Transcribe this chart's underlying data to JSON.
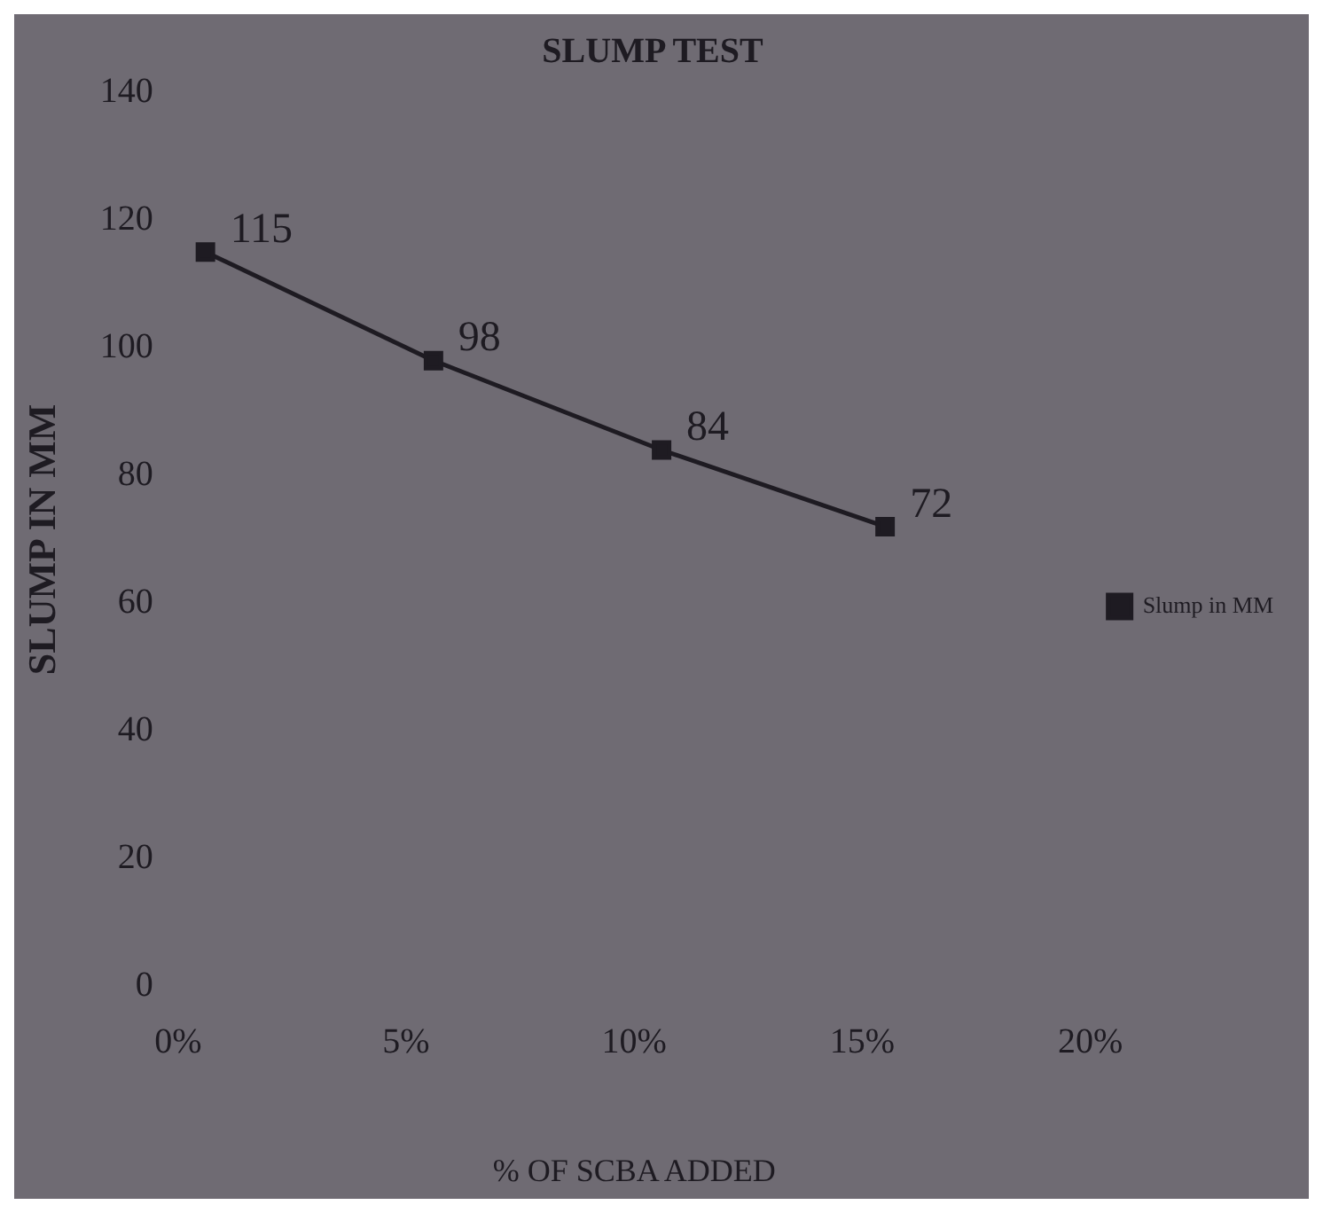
{
  "chart_data": {
    "type": "line",
    "title": "SLUMP TEST",
    "xlabel": "% OF SCBA ADDED",
    "ylabel": "SLUMP IN MM",
    "x": [
      0.6,
      5.6,
      10.6,
      15.5
    ],
    "series": [
      {
        "name": "Slump in MM",
        "color": "#1e1b22",
        "values": [
          115,
          98,
          84,
          72
        ]
      }
    ],
    "xlim": [
      0,
      20
    ],
    "xticks": [
      {
        "value": 0,
        "label": "0%"
      },
      {
        "value": 5,
        "label": "5%"
      },
      {
        "value": 10,
        "label": "10%"
      },
      {
        "value": 15,
        "label": "15%"
      },
      {
        "value": 20,
        "label": "20%"
      }
    ],
    "ylim": [
      0,
      140
    ],
    "yticks": [
      0,
      20,
      40,
      60,
      80,
      100,
      120,
      140
    ],
    "grid": false,
    "legend": "right",
    "marker": "square",
    "line_style": "solid",
    "data_labels": true
  }
}
